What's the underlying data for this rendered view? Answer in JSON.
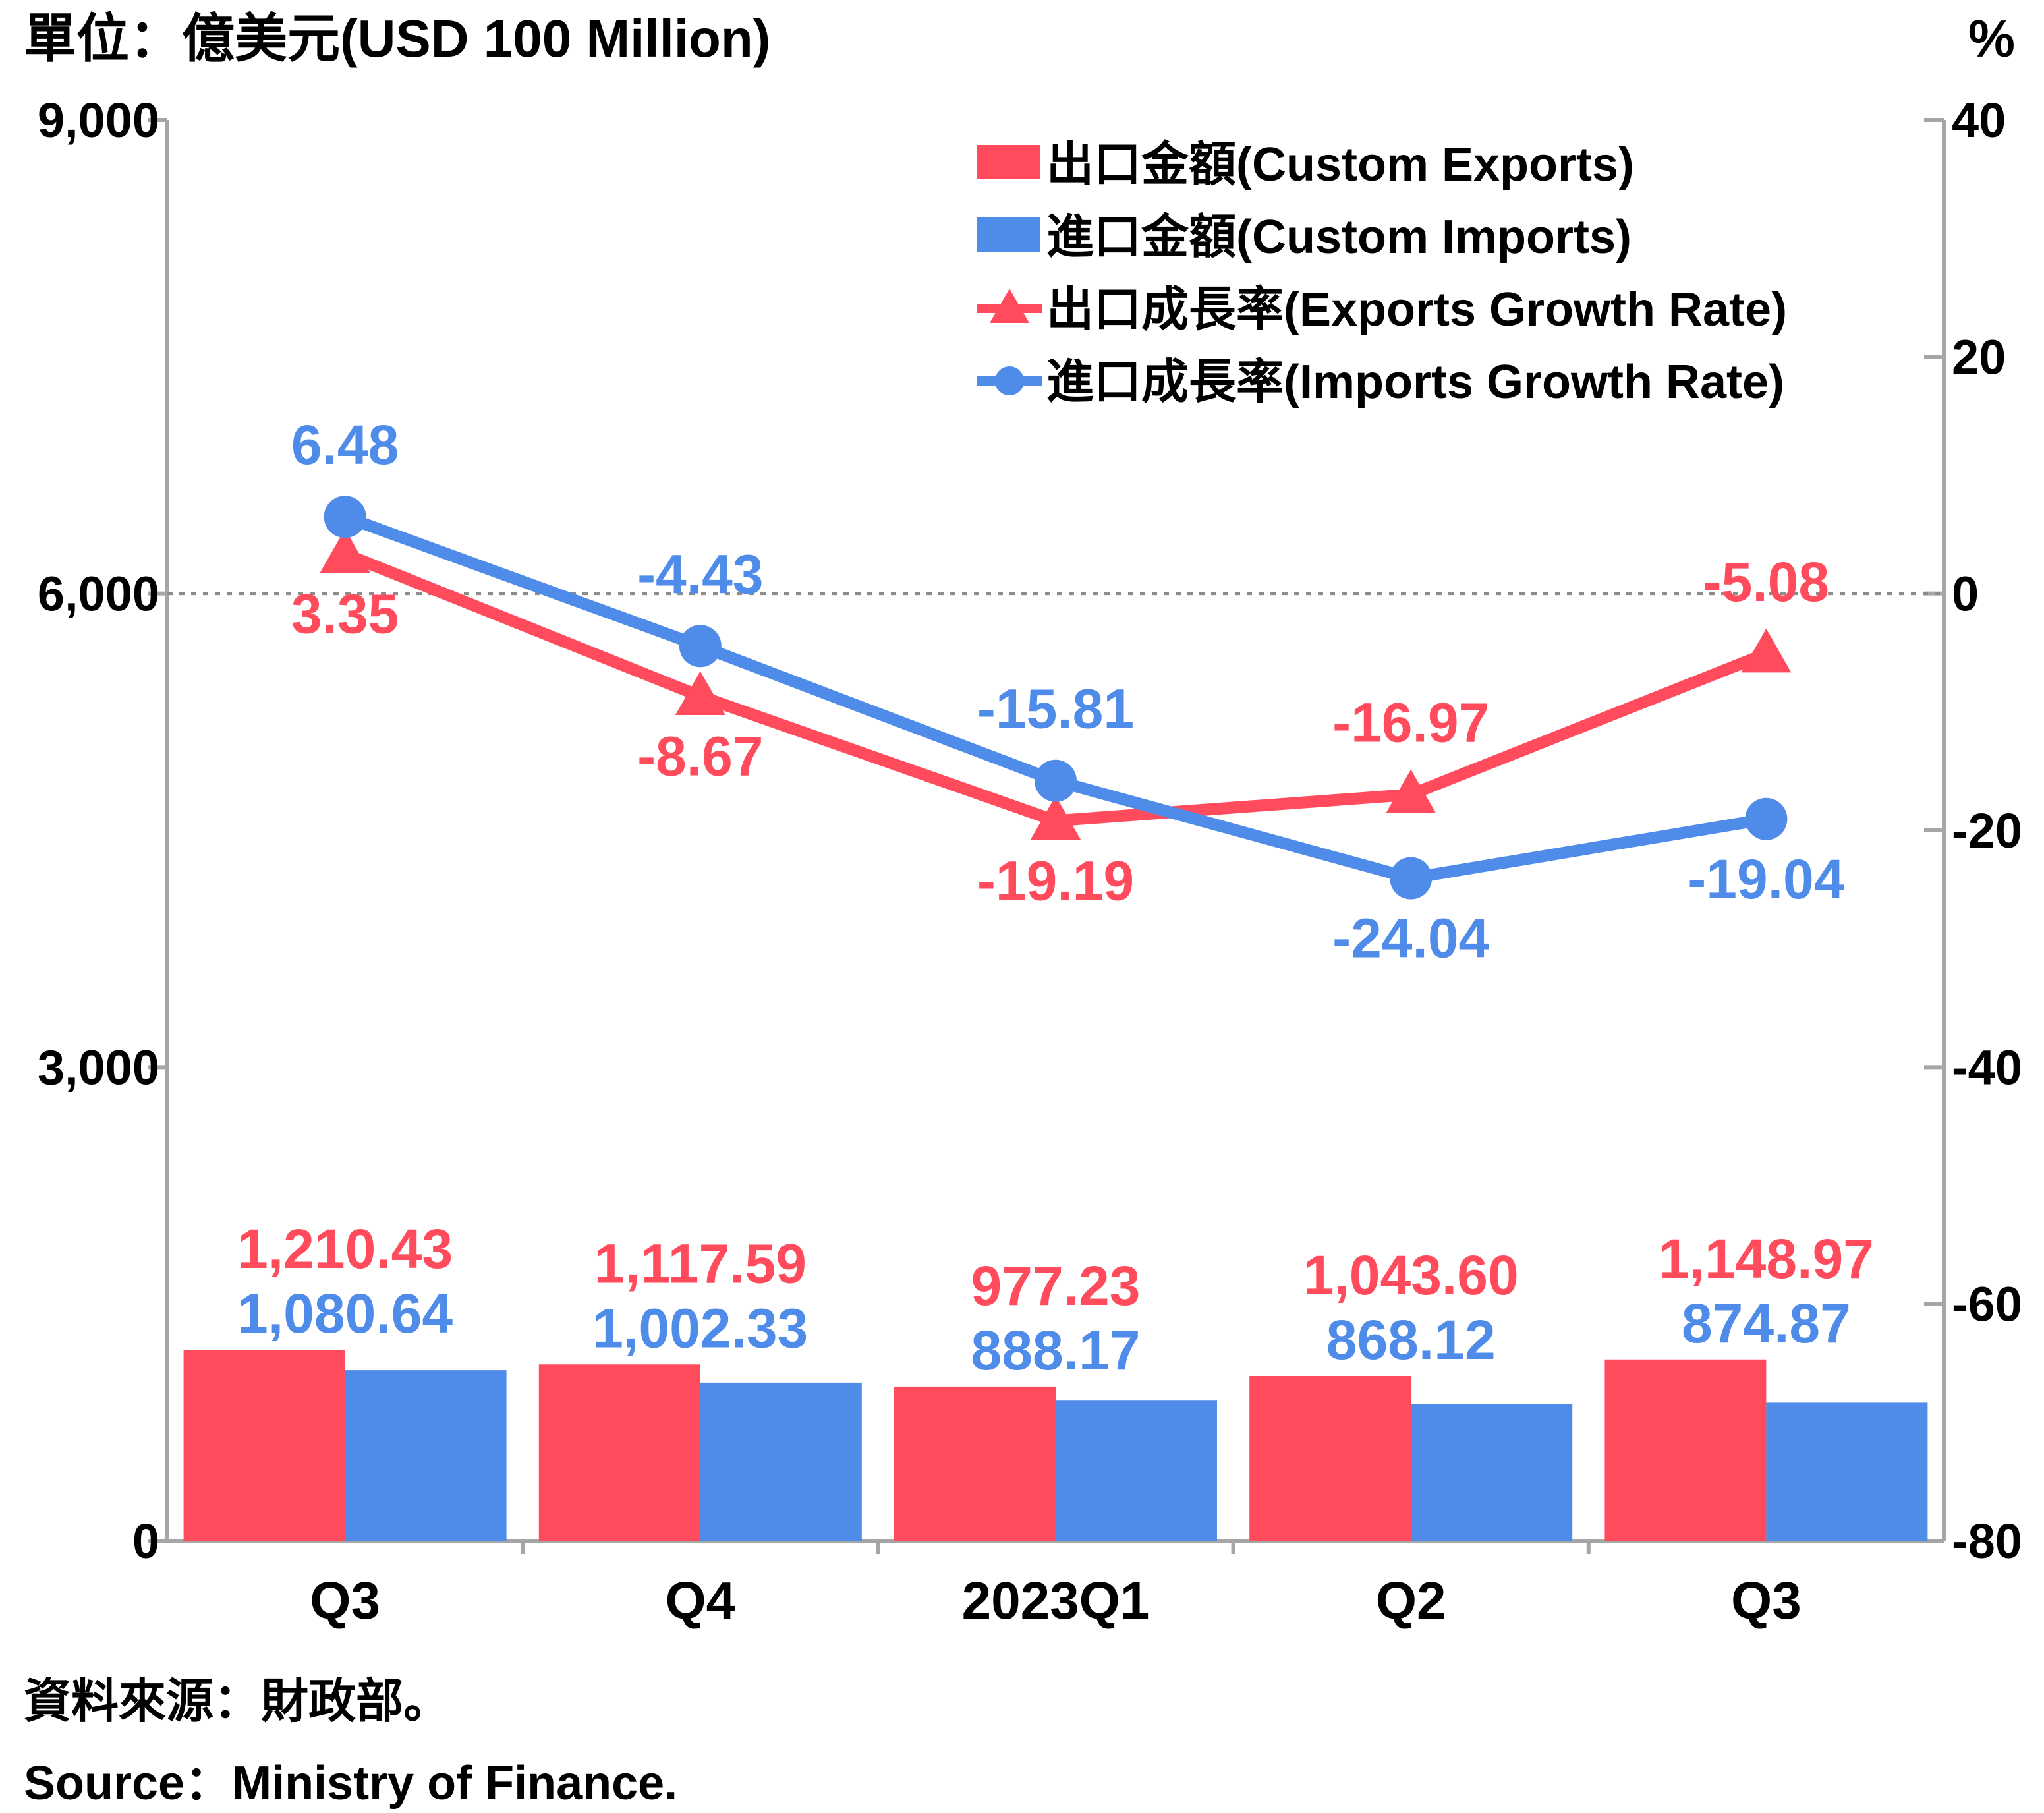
{
  "chart_data": {
    "type": "bar",
    "categories": [
      "Q3",
      "Q4",
      "2023Q1",
      "Q2",
      "Q3"
    ],
    "left_axis": {
      "label": "單位：億美元(USD 100 Million)",
      "ylim": [
        0,
        9000
      ],
      "ticks": [
        0,
        3000,
        6000,
        9000
      ],
      "tick_labels": [
        "0",
        "3,000",
        "6,000",
        "9,000"
      ]
    },
    "right_axis": {
      "label": "%",
      "ylim": [
        -80,
        40
      ],
      "ticks": [
        -80,
        -60,
        -40,
        -20,
        0,
        20,
        40
      ],
      "tick_labels": [
        "-80",
        "-60",
        "-40",
        "-20",
        "0",
        "20",
        "40"
      ]
    },
    "zero_reference_line": true,
    "legend_position": "top-right",
    "series": [
      {
        "name": "出口金額(Custom Exports)",
        "type": "bar",
        "axis": "left",
        "color": "#FF4B5C",
        "values": [
          1210.43,
          1117.59,
          977.23,
          1043.6,
          1148.97
        ],
        "labels": [
          "1,210.43",
          "1,117.59",
          "977.23",
          "1,043.60",
          "1,148.97"
        ]
      },
      {
        "name": "進口金額(Custom Imports)",
        "type": "bar",
        "axis": "left",
        "color": "#4F8BE8",
        "values": [
          1080.64,
          1002.33,
          888.17,
          868.12,
          874.87
        ],
        "labels": [
          "1,080.64",
          "1,002.33",
          "888.17",
          "868.12",
          "874.87"
        ]
      },
      {
        "name": "出口成長率(Exports Growth Rate)",
        "type": "line",
        "marker": "triangle",
        "axis": "right",
        "color": "#FF4B5C",
        "values": [
          3.35,
          -8.67,
          -19.19,
          -16.97,
          -5.08
        ],
        "labels": [
          "3.35",
          "-8.67",
          "-19.19",
          "-16.97",
          "-5.08"
        ]
      },
      {
        "name": "進口成長率(Imports Growth Rate)",
        "type": "line",
        "marker": "circle",
        "axis": "right",
        "color": "#4F8BE8",
        "values": [
          6.48,
          -4.43,
          -15.81,
          -24.04,
          -19.04
        ],
        "labels": [
          "6.48",
          "-4.43",
          "-15.81",
          "-24.04",
          "-19.04"
        ]
      }
    ]
  },
  "source": {
    "line_zh": "資料來源：財政部。",
    "line_en": "Source：Ministry of Finance."
  }
}
